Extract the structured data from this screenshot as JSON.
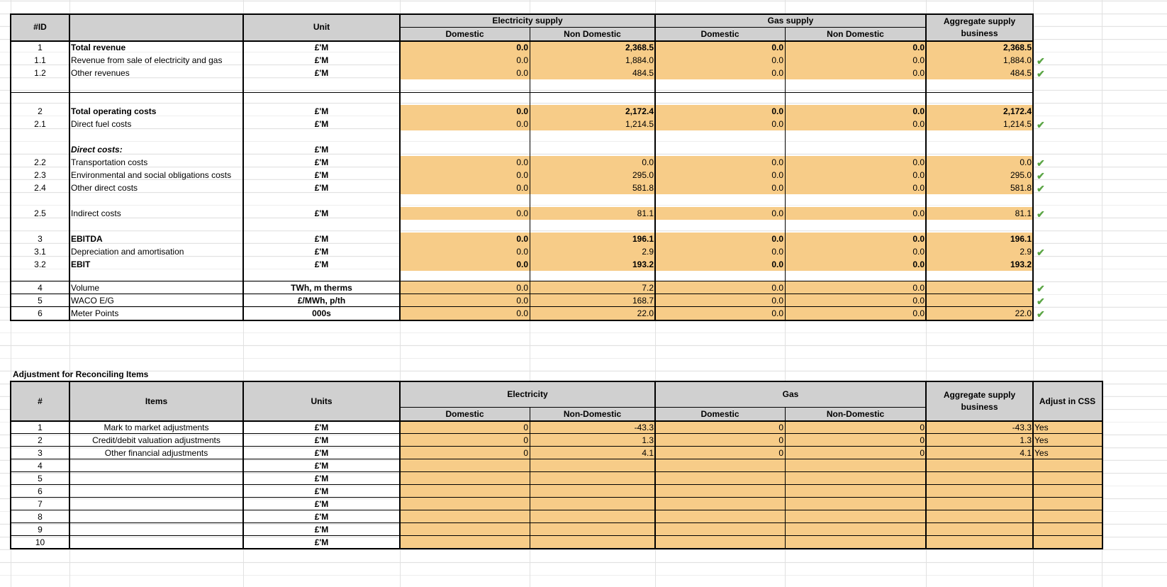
{
  "top_table": {
    "headers": {
      "id": "#ID",
      "unit": "Unit",
      "electricity": "Electricity supply",
      "gas": "Gas supply",
      "aggregate": "Aggregate supply business",
      "domestic": "Domestic",
      "non_domestic": "Non Domestic"
    },
    "rows": [
      {
        "id": "1",
        "label": "Total revenue",
        "unit": "£'M",
        "bold": true,
        "values": [
          "0.0",
          "2,368.5",
          "0.0",
          "0.0",
          "2,368.5"
        ],
        "check": false
      },
      {
        "id": "1.1",
        "label": "Revenue from sale of  electricity and gas",
        "unit": "£'M",
        "bold": false,
        "values": [
          "0.0",
          "1,884.0",
          "0.0",
          "0.0",
          "1,884.0"
        ],
        "check": true
      },
      {
        "id": "1.2",
        "label": "Other revenues",
        "unit": "£'M",
        "bold": false,
        "values": [
          "0.0",
          "484.5",
          "0.0",
          "0.0",
          "484.5"
        ],
        "check": true
      },
      {
        "id": "2",
        "label": "Total operating costs",
        "unit": "£'M",
        "bold": true,
        "values": [
          "0.0",
          "2,172.4",
          "0.0",
          "0.0",
          "2,172.4"
        ],
        "check": false
      },
      {
        "id": "2.1",
        "label": "Direct fuel costs",
        "unit": "£'M",
        "bold": false,
        "values": [
          "0.0",
          "1,214.5",
          "0.0",
          "0.0",
          "1,214.5"
        ],
        "check": true
      },
      {
        "id": "",
        "label": "Direct costs:",
        "unit": "£'M",
        "bold": true,
        "italic": true,
        "values": null,
        "check": false
      },
      {
        "id": "2.2",
        "label": "Transportation costs",
        "unit": "£'M",
        "bold": false,
        "values": [
          "0.0",
          "0.0",
          "0.0",
          "0.0",
          "0.0"
        ],
        "check": true
      },
      {
        "id": "2.3",
        "label": "Environmental and social obligations costs",
        "unit": "£'M",
        "bold": false,
        "values": [
          "0.0",
          "295.0",
          "0.0",
          "0.0",
          "295.0"
        ],
        "check": true
      },
      {
        "id": "2.4",
        "label": "Other direct costs",
        "unit": "£'M",
        "bold": false,
        "values": [
          "0.0",
          "581.8",
          "0.0",
          "0.0",
          "581.8"
        ],
        "check": true
      },
      {
        "id": "2.5",
        "label": "Indirect costs",
        "unit": "£'M",
        "bold": false,
        "values": [
          "0.0",
          "81.1",
          "0.0",
          "0.0",
          "81.1"
        ],
        "check": true
      },
      {
        "id": "3",
        "label": "EBITDA",
        "unit": "£'M",
        "bold": true,
        "values": [
          "0.0",
          "196.1",
          "0.0",
          "0.0",
          "196.1"
        ],
        "check": false
      },
      {
        "id": "3.1",
        "label": "Depreciation and amortisation",
        "unit": "£'M",
        "bold": false,
        "values": [
          "0.0",
          "2.9",
          "0.0",
          "0.0",
          "2.9"
        ],
        "check": true
      },
      {
        "id": "3.2",
        "label": "EBIT",
        "unit": "£'M",
        "bold": true,
        "values": [
          "0.0",
          "193.2",
          "0.0",
          "0.0",
          "193.2"
        ],
        "check": false
      },
      {
        "id": "4",
        "label": "Volume",
        "unit": "TWh, m therms",
        "bold": false,
        "values": [
          "0.0",
          "7.2",
          "0.0",
          "0.0",
          ""
        ],
        "check": true
      },
      {
        "id": "5",
        "label": "WACO E/G",
        "unit": "£/MWh, p/th",
        "bold": false,
        "values": [
          "0.0",
          "168.7",
          "0.0",
          "0.0",
          ""
        ],
        "check": true
      },
      {
        "id": "6",
        "label": "Meter Points",
        "unit": "000s",
        "bold": false,
        "values": [
          "0.0",
          "22.0",
          "0.0",
          "0.0",
          "22.0"
        ],
        "check": true
      }
    ]
  },
  "bottom_table": {
    "title": "Adjustment for Reconciling Items",
    "headers": {
      "num": "#",
      "items": "Items",
      "units": "Units",
      "electricity": "Electricity",
      "gas": "Gas",
      "aggregate": "Aggregate supply business",
      "adjust": "Adjust in CSS",
      "domestic": "Domestic",
      "non_domestic": "Non-Domestic"
    },
    "rows": [
      {
        "num": "1",
        "item": "Mark to market adjustments",
        "unit": "£'M",
        "values": [
          "0",
          "-43.3",
          "0",
          "0",
          "-43.3"
        ],
        "adjust": "Yes"
      },
      {
        "num": "2",
        "item": "Credit/debit valuation adjustments",
        "unit": "£'M",
        "values": [
          "0",
          "1.3",
          "0",
          "0",
          "1.3"
        ],
        "adjust": "Yes"
      },
      {
        "num": "3",
        "item": "Other financial adjustments",
        "unit": "£'M",
        "values": [
          "0",
          "4.1",
          "0",
          "0",
          "4.1"
        ],
        "adjust": "Yes"
      },
      {
        "num": "4",
        "item": "",
        "unit": "£'M",
        "values": [
          "",
          "",
          "",
          "",
          ""
        ],
        "adjust": ""
      },
      {
        "num": "5",
        "item": "",
        "unit": "£'M",
        "values": [
          "",
          "",
          "",
          "",
          ""
        ],
        "adjust": ""
      },
      {
        "num": "6",
        "item": "",
        "unit": "£'M",
        "values": [
          "",
          "",
          "",
          "",
          ""
        ],
        "adjust": ""
      },
      {
        "num": "7",
        "item": "",
        "unit": "£'M",
        "values": [
          "",
          "",
          "",
          "",
          ""
        ],
        "adjust": ""
      },
      {
        "num": "8",
        "item": "",
        "unit": "£'M",
        "values": [
          "",
          "",
          "",
          "",
          ""
        ],
        "adjust": ""
      },
      {
        "num": "9",
        "item": "",
        "unit": "£'M",
        "values": [
          "",
          "",
          "",
          "",
          ""
        ],
        "adjust": ""
      },
      {
        "num": "10",
        "item": "",
        "unit": "£'M",
        "values": [
          "",
          "",
          "",
          "",
          ""
        ],
        "adjust": ""
      }
    ]
  },
  "colors": {
    "fill": "#f7cc88",
    "header": "#d0d0d0",
    "check": "#5aa544"
  },
  "icons": {
    "check": "checkmark-icon"
  }
}
